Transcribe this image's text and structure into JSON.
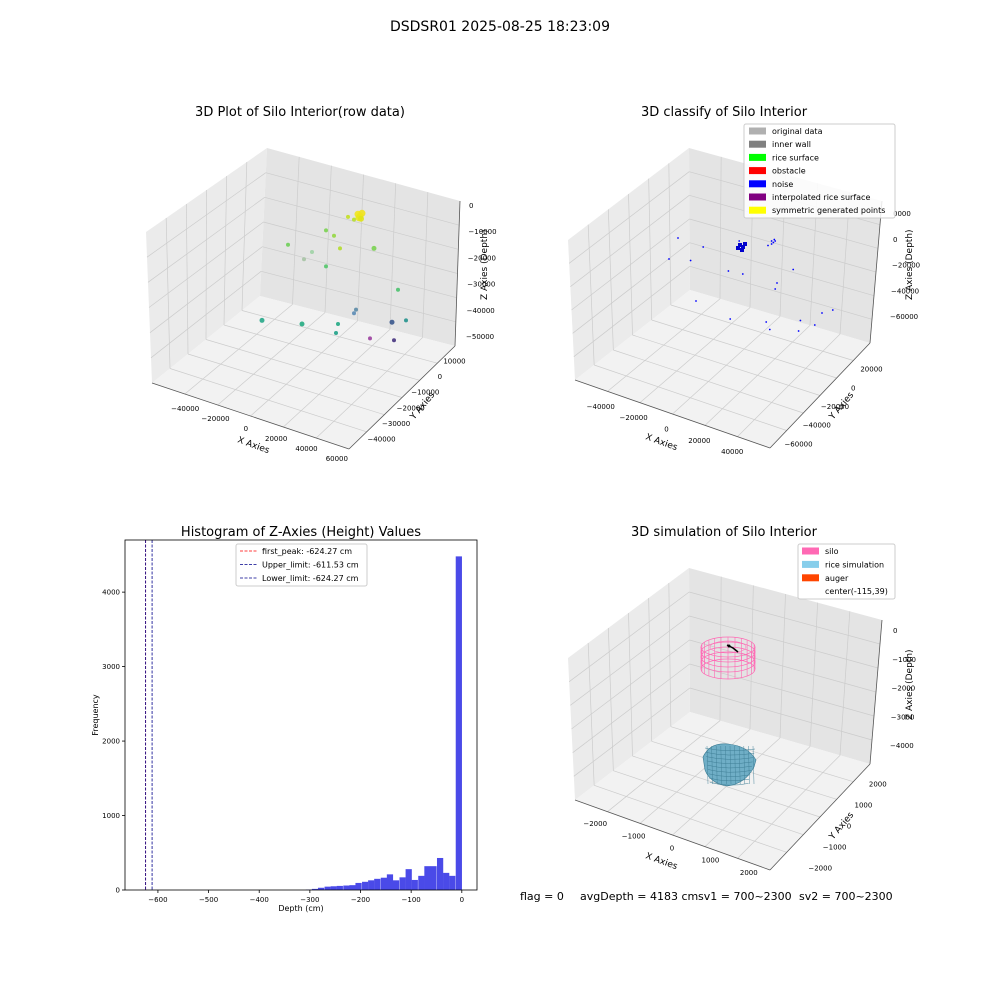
{
  "figure": {
    "suptitle": "DSDSR01 2025-08-25 18:23:09"
  },
  "colors": {
    "pane_left": "#ebebeb",
    "pane_right": "#e4e4e4",
    "pane_floor": "#f2f2f2",
    "grid": "#cccccc",
    "axis": "#000000",
    "hist_bar": "#4a4ae8",
    "first_peak": "#ff0000",
    "limit": "#00008b"
  },
  "chart_data": [
    {
      "type": "scatter",
      "title": "3D Plot of Silo Interior(row data)",
      "xlabel": "X Axies",
      "ylabel": "Y Axies",
      "zlabel": "Z Axies (Depth)",
      "x_ticks": [
        "−40000",
        "−20000",
        "0",
        "20000",
        "40000",
        "60000"
      ],
      "y_ticks": [
        "10000",
        "0",
        "−10000",
        "−20000",
        "−30000",
        "−40000"
      ],
      "z_ticks": [
        "0",
        "−10000",
        "−20000",
        "−30000",
        "−40000",
        "−50000"
      ],
      "points": [
        {
          "x": 0.68,
          "y": 0.19,
          "c": "#f2e51d",
          "r": 3.5
        },
        {
          "x": 0.69,
          "y": 0.2,
          "c": "#ecec1a",
          "r": 3.5
        },
        {
          "x": 0.685,
          "y": 0.21,
          "c": "#e9e51b",
          "r": 3.5
        },
        {
          "x": 0.7,
          "y": 0.185,
          "c": "#f0e21e",
          "r": 3.5
        },
        {
          "x": 0.695,
          "y": 0.215,
          "c": "#dfe318",
          "r": 3
        },
        {
          "x": 0.63,
          "y": 0.205,
          "c": "#c2df23",
          "r": 2
        },
        {
          "x": 0.66,
          "y": 0.22,
          "c": "#b5de2b",
          "r": 2
        },
        {
          "x": 0.52,
          "y": 0.28,
          "c": "#7ad151",
          "r": 2
        },
        {
          "x": 0.56,
          "y": 0.31,
          "c": "#93d741",
          "r": 2
        },
        {
          "x": 0.59,
          "y": 0.38,
          "c": "#b3dc2b",
          "r": 2
        },
        {
          "x": 0.45,
          "y": 0.4,
          "c": "#9fd2a5",
          "r": 2
        },
        {
          "x": 0.76,
          "y": 0.38,
          "c": "#7ad151",
          "r": 2.5
        },
        {
          "x": 0.33,
          "y": 0.36,
          "c": "#6ece58",
          "r": 2
        },
        {
          "x": 0.41,
          "y": 0.44,
          "c": "#a6c3a4",
          "r": 2
        },
        {
          "x": 0.52,
          "y": 0.48,
          "c": "#52c569",
          "r": 2
        },
        {
          "x": 0.88,
          "y": 0.61,
          "c": "#4ac16d",
          "r": 2
        },
        {
          "x": 0.67,
          "y": 0.72,
          "c": "#5a89a6",
          "r": 2
        },
        {
          "x": 0.66,
          "y": 0.74,
          "c": "#5b8bb5",
          "r": 2
        },
        {
          "x": 0.2,
          "y": 0.78,
          "c": "#26a788",
          "r": 2.5
        },
        {
          "x": 0.4,
          "y": 0.8,
          "c": "#25ab82",
          "r": 2.5
        },
        {
          "x": 0.58,
          "y": 0.8,
          "c": "#22a884",
          "r": 2
        },
        {
          "x": 0.85,
          "y": 0.79,
          "c": "#39568c",
          "r": 2.5
        },
        {
          "x": 0.92,
          "y": 0.78,
          "c": "#21918c",
          "r": 2
        },
        {
          "x": 0.57,
          "y": 0.85,
          "c": "#1fa187",
          "r": 2
        },
        {
          "x": 0.74,
          "y": 0.88,
          "c": "#9b3f9f",
          "r": 2
        },
        {
          "x": 0.86,
          "y": 0.89,
          "c": "#46337e",
          "r": 2
        }
      ]
    },
    {
      "type": "scatter",
      "title": "3D classify of Silo Interior",
      "xlabel": "X Axies",
      "ylabel": "Y Axies",
      "zlabel": "Z Axies (Depth)",
      "x_ticks": [
        "−40000",
        "−20000",
        "0",
        "20000",
        "40000"
      ],
      "y_ticks": [
        "20000",
        "0",
        "−20000",
        "−40000",
        "−60000"
      ],
      "z_ticks": [
        "0",
        "−20000",
        "−40000",
        "−60000"
      ],
      "z_top_partial": "0000",
      "legend": {
        "placement": "top-right",
        "entries": [
          {
            "label": "original data",
            "color": "#b0b0b0"
          },
          {
            "label": "inner wall",
            "color": "#808080"
          },
          {
            "label": "rice surface",
            "color": "#00ff00"
          },
          {
            "label": "obstacle",
            "color": "#ff0000"
          },
          {
            "label": "noise",
            "color": "#0000ff"
          },
          {
            "label": "interpolated rice surface",
            "color": "#800080"
          },
          {
            "label": "symmetric generated points",
            "color": "#ffff00"
          }
        ]
      },
      "noise_points": [
        {
          "x": 0.62,
          "y": 0.14
        },
        {
          "x": 0.63,
          "y": 0.15
        },
        {
          "x": 0.64,
          "y": 0.14
        },
        {
          "x": 0.62,
          "y": 0.16
        },
        {
          "x": 0.635,
          "y": 0.13
        },
        {
          "x": 0.1,
          "y": 0.12
        },
        {
          "x": 0.24,
          "y": 0.18
        },
        {
          "x": 0.44,
          "y": 0.14
        },
        {
          "x": 0.6,
          "y": 0.17
        },
        {
          "x": 0.05,
          "y": 0.26
        },
        {
          "x": 0.17,
          "y": 0.27
        },
        {
          "x": 0.38,
          "y": 0.34
        },
        {
          "x": 0.46,
          "y": 0.36
        },
        {
          "x": 0.74,
          "y": 0.33
        },
        {
          "x": 0.65,
          "y": 0.42
        },
        {
          "x": 0.64,
          "y": 0.46
        },
        {
          "x": 0.2,
          "y": 0.54
        },
        {
          "x": 0.39,
          "y": 0.66
        },
        {
          "x": 0.59,
          "y": 0.68
        },
        {
          "x": 0.61,
          "y": 0.73
        },
        {
          "x": 0.78,
          "y": 0.67
        },
        {
          "x": 0.86,
          "y": 0.7
        },
        {
          "x": 0.77,
          "y": 0.74
        },
        {
          "x": 0.96,
          "y": 0.6
        },
        {
          "x": 0.9,
          "y": 0.62
        }
      ]
    },
    {
      "type": "bar",
      "title": "Histogram of Z-Axies (Height) Values",
      "xlabel": "Depth (cm)",
      "ylabel": "Frequency",
      "xlim": [
        -665,
        30
      ],
      "ylim": [
        0,
        4700
      ],
      "x_ticks": [
        -600,
        -500,
        -400,
        -300,
        -200,
        -100,
        0
      ],
      "y_ticks": [
        0,
        1000,
        2000,
        3000,
        4000
      ],
      "bin_width": 12.3,
      "bins_left": [
        -308,
        -296,
        -284,
        -271,
        -259,
        -247,
        -234,
        -222,
        -210,
        -197,
        -185,
        -173,
        -160,
        -148,
        -136,
        -123,
        -111,
        -99,
        -86,
        -74,
        -62,
        -49,
        -37,
        -25,
        -12
      ],
      "frequencies": [
        5,
        15,
        30,
        45,
        50,
        55,
        60,
        65,
        95,
        110,
        130,
        150,
        165,
        210,
        130,
        170,
        280,
        135,
        190,
        320,
        320,
        430,
        230,
        190,
        4480
      ],
      "vlines": [
        {
          "name": "first_peak",
          "label": "first_peak: -624.27 cm",
          "x": -624.27,
          "color": "#ff0000"
        },
        {
          "name": "upper_limit",
          "label": "Upper_limit: -611.53 cm",
          "x": -611.53,
          "color": "#00008b"
        },
        {
          "name": "lower_limit",
          "label": "Lower_limit: -624.27 cm",
          "x": -624.27,
          "color": "#00008b"
        }
      ]
    },
    {
      "type": "3d-surface",
      "title": "3D simulation of Silo Interior",
      "xlabel": "X Axies",
      "ylabel": "Y Axies",
      "zlabel": "Z Axies (Depth)",
      "x_ticks": [
        "−2000",
        "−1000",
        "0",
        "1000",
        "2000"
      ],
      "y_ticks": [
        "2000",
        "1000",
        "0",
        "−1000",
        "−2000"
      ],
      "z_ticks": [
        "0",
        "−1000",
        "−2000",
        "−3000",
        "−4000"
      ],
      "legend": {
        "placement": "top-right",
        "entries": [
          {
            "label": "silo",
            "color": "#ff69b4"
          },
          {
            "label": "rice simulation",
            "color": "#87ceeb"
          },
          {
            "label": "auger",
            "color": "#ff4500"
          },
          {
            "label": "center(-115,39)",
            "color": ""
          }
        ]
      }
    }
  ],
  "footer": {
    "flag_text": "flag = 0",
    "avg_text": "avgDepth = 4183 cm",
    "sv1_text": "sv1 = 700~2300",
    "sv2_text": "sv2 = 700~2300"
  }
}
